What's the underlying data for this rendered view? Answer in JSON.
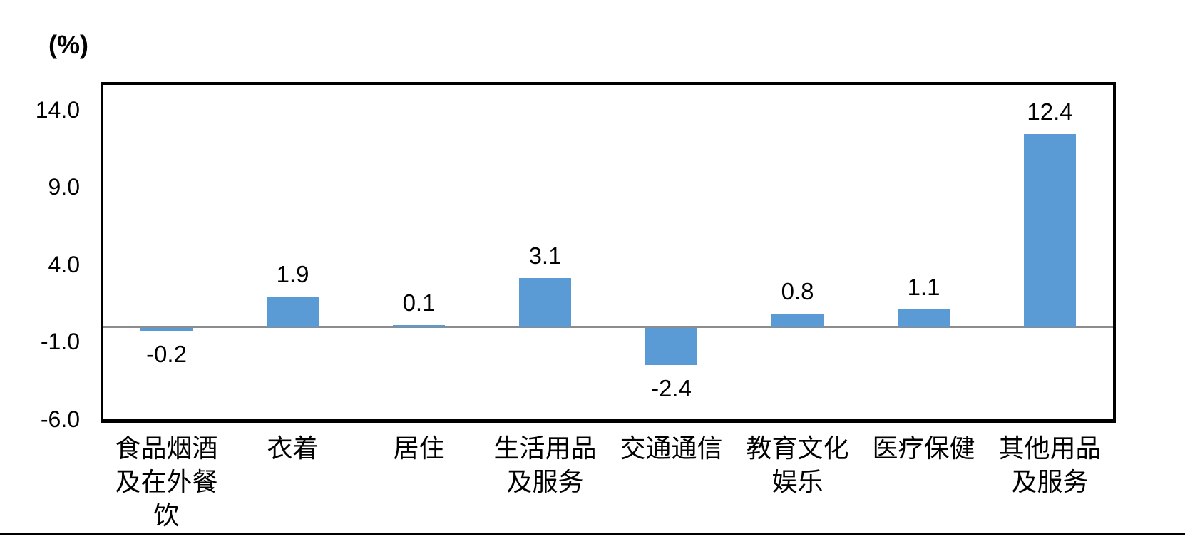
{
  "chart_data": {
    "type": "bar",
    "title": "",
    "unit_label": "(%)",
    "categories": [
      "食品烟酒\n及在外餐\n饮",
      "衣着",
      "居住",
      "生活用品\n及服务",
      "交通通信",
      "教育文化\n娱乐",
      "医疗保健",
      "其他用品\n及服务"
    ],
    "values": [
      -0.2,
      1.9,
      0.1,
      3.1,
      -2.4,
      0.8,
      1.1,
      12.4
    ],
    "data_labels": [
      "-0.2",
      "1.9",
      "0.1",
      "3.1",
      "-2.4",
      "0.8",
      "1.1",
      "12.4"
    ],
    "y_ticks": [
      "14.0",
      "9.0",
      "4.0",
      "-1.0",
      "-6.0"
    ],
    "y_tick_values": [
      14,
      9,
      4,
      -1,
      -6
    ],
    "ylim": [
      -6,
      15.6
    ],
    "xlabel": "",
    "ylabel": "(%)",
    "grid": false,
    "legend": "none",
    "bar_color": "#5B9BD5",
    "zero_line_color": "#8C8C8C",
    "axis_color": "#000000"
  }
}
